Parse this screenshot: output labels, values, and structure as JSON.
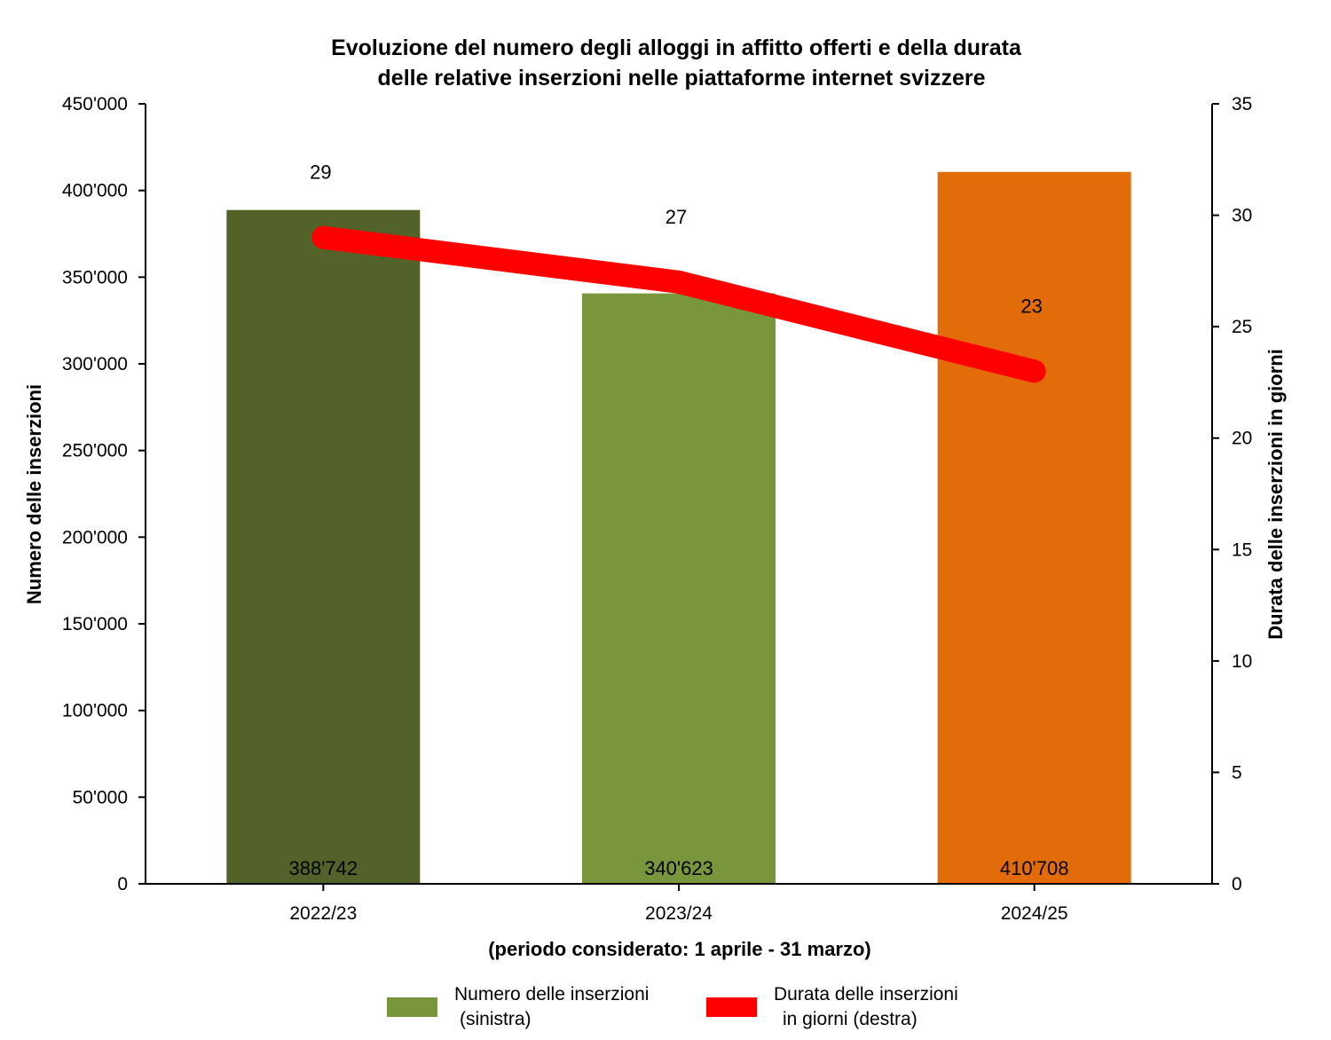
{
  "chart_data": {
    "type": "bar",
    "title_line1": "Evoluzione del numero degli alloggi in affitto offerti e della durata",
    "title_line2": "delle relative inserzioni nelle piattaforme internet svizzere",
    "categories": [
      "2022/23",
      "2023/24",
      "2024/25"
    ],
    "bars": {
      "name": "Numero delle inserzioni (sinistra)",
      "values": [
        388742,
        340623,
        410708
      ],
      "labels": [
        "388'742",
        "340'623",
        "410'708"
      ],
      "colors": [
        "#526229",
        "#78963c",
        "#e36c0a"
      ]
    },
    "line": {
      "name": "Durata delle inserzioni in giorni (destra)",
      "values": [
        29,
        27,
        23
      ],
      "labels": [
        "29",
        "27",
        "23"
      ],
      "color": "#ff0000"
    },
    "y_left": {
      "label": "Numero delle inserzioni",
      "lim": [
        0,
        450000
      ],
      "ticks": [
        0,
        50000,
        100000,
        150000,
        200000,
        250000,
        300000,
        350000,
        400000,
        450000
      ],
      "tick_labels": [
        "0",
        "50'000",
        "100'000",
        "150'000",
        "200'000",
        "250'000",
        "300'000",
        "350'000",
        "400'000",
        "450'000"
      ]
    },
    "y_right": {
      "label": "Durata delle inserzioni in giorni",
      "lim": [
        0,
        35
      ],
      "ticks": [
        0,
        5,
        10,
        15,
        20,
        25,
        30,
        35
      ],
      "tick_labels": [
        "0",
        "5",
        "10",
        "15",
        "20",
        "25",
        "30",
        "35"
      ]
    },
    "xlabel": "(periodo considerato: 1 aprile - 31 marzo)",
    "legend": {
      "placement": "bottom",
      "bar_line1": "Numero delle inserzioni",
      "bar_line2": "(sinistra)",
      "bar_color": "#78963c",
      "line_line1": "Durata delle inserzioni",
      "line_line2": "in giorni (destra)",
      "line_color": "#ff0000"
    },
    "grid": false
  }
}
